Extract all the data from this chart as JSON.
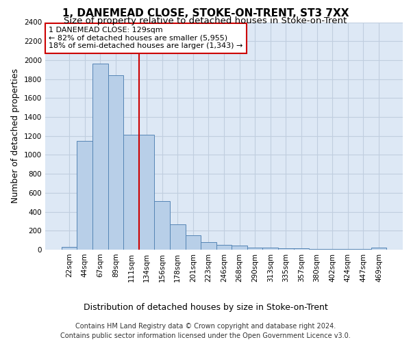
{
  "title": "1, DANEMEAD CLOSE, STOKE-ON-TRENT, ST3 7XX",
  "subtitle": "Size of property relative to detached houses in Stoke-on-Trent",
  "xlabel": "Distribution of detached houses by size in Stoke-on-Trent",
  "ylabel": "Number of detached properties",
  "categories": [
    "22sqm",
    "44sqm",
    "67sqm",
    "89sqm",
    "111sqm",
    "134sqm",
    "156sqm",
    "178sqm",
    "201sqm",
    "223sqm",
    "246sqm",
    "268sqm",
    "290sqm",
    "313sqm",
    "335sqm",
    "357sqm",
    "380sqm",
    "402sqm",
    "424sqm",
    "447sqm",
    "469sqm"
  ],
  "values": [
    30,
    1150,
    1960,
    1840,
    1210,
    1210,
    515,
    265,
    155,
    80,
    50,
    45,
    20,
    20,
    15,
    15,
    10,
    5,
    5,
    5,
    20
  ],
  "bar_color": "#b8cfe8",
  "bar_edge_color": "#5585b5",
  "vline_x_index": 5,
  "vline_color": "#cc0000",
  "annotation_line1": "1 DANEMEAD CLOSE: 129sqm",
  "annotation_line2": "← 82% of detached houses are smaller (5,955)",
  "annotation_line3": "18% of semi-detached houses are larger (1,343) →",
  "annotation_box_color": "#ffffff",
  "annotation_box_edge_color": "#cc0000",
  "ylim": [
    0,
    2400
  ],
  "yticks": [
    0,
    200,
    400,
    600,
    800,
    1000,
    1200,
    1400,
    1600,
    1800,
    2000,
    2200,
    2400
  ],
  "footer1": "Contains HM Land Registry data © Crown copyright and database right 2024.",
  "footer2": "Contains public sector information licensed under the Open Government Licence v3.0.",
  "bg_color": "#ffffff",
  "plot_bg_color": "#dde8f5",
  "grid_color": "#c0cedf",
  "title_fontsize": 11,
  "subtitle_fontsize": 9.5,
  "ylabel_fontsize": 9,
  "xlabel_fontsize": 9,
  "tick_fontsize": 7.5,
  "annotation_fontsize": 8,
  "footer_fontsize": 7
}
